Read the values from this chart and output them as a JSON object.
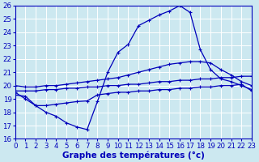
{
  "bg_color": "#cce8f0",
  "grid_color": "#ffffff",
  "line_color": "#0000bb",
  "xlabel": "Graphe des températures (°c)",
  "xlim": [
    0,
    23
  ],
  "ylim": [
    16,
    26
  ],
  "yticks": [
    16,
    17,
    18,
    19,
    20,
    21,
    22,
    23,
    24,
    25,
    26
  ],
  "xticks": [
    0,
    1,
    2,
    3,
    4,
    5,
    6,
    7,
    8,
    9,
    10,
    11,
    12,
    13,
    14,
    15,
    16,
    17,
    18,
    19,
    20,
    21,
    22,
    23
  ],
  "curve_main_x": [
    0,
    1,
    2,
    3,
    4,
    5,
    6,
    7,
    8,
    9,
    10,
    11,
    12,
    13,
    14,
    15,
    16,
    17,
    18,
    19,
    20,
    21,
    22,
    23
  ],
  "curve_main_y": [
    19.5,
    19.0,
    18.5,
    18.0,
    17.7,
    17.2,
    16.9,
    16.7,
    18.8,
    21.0,
    22.5,
    23.1,
    24.5,
    24.9,
    25.3,
    25.6,
    26.0,
    25.5,
    22.7,
    21.2,
    20.5,
    20.3,
    20.0,
    19.7
  ],
  "curve_top_x": [
    0,
    1,
    2,
    3,
    4,
    5,
    6,
    7,
    8,
    9,
    10,
    11,
    12,
    13,
    14,
    15,
    16,
    17,
    18,
    19,
    20,
    21,
    22,
    23
  ],
  "curve_top_y": [
    20.0,
    19.9,
    19.9,
    20.0,
    20.0,
    20.1,
    20.2,
    20.3,
    20.4,
    20.5,
    20.6,
    20.8,
    21.0,
    21.2,
    21.4,
    21.6,
    21.7,
    21.8,
    21.8,
    21.7,
    21.2,
    20.8,
    20.3,
    20.0
  ],
  "curve_mid_x": [
    0,
    1,
    2,
    3,
    4,
    5,
    6,
    7,
    8,
    9,
    10,
    11,
    12,
    13,
    14,
    15,
    16,
    17,
    18,
    19,
    20,
    21,
    22,
    23
  ],
  "curve_mid_y": [
    19.6,
    19.6,
    19.6,
    19.7,
    19.7,
    19.8,
    19.8,
    19.9,
    19.9,
    20.0,
    20.0,
    20.1,
    20.1,
    20.2,
    20.3,
    20.3,
    20.4,
    20.4,
    20.5,
    20.5,
    20.6,
    20.6,
    20.7,
    20.7
  ],
  "curve_bot_x": [
    0,
    1,
    2,
    3,
    4,
    5,
    6,
    7,
    8,
    9,
    10,
    11,
    12,
    13,
    14,
    15,
    16,
    17,
    18,
    19,
    20,
    21,
    22,
    23
  ],
  "curve_bot_y": [
    19.3,
    19.2,
    18.5,
    18.5,
    18.6,
    18.7,
    18.8,
    18.85,
    19.3,
    19.4,
    19.5,
    19.5,
    19.6,
    19.6,
    19.7,
    19.7,
    19.8,
    19.8,
    19.9,
    19.9,
    20.0,
    20.0,
    20.1,
    19.6
  ]
}
